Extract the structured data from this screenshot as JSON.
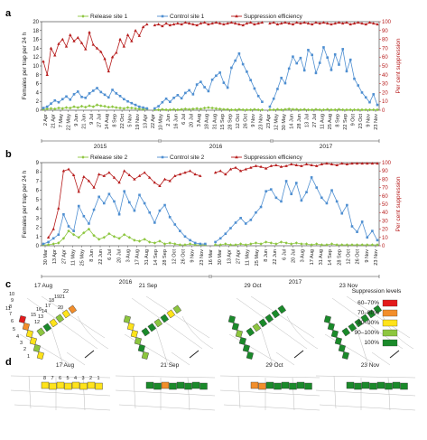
{
  "chart_data": [
    {
      "panel": "a",
      "type": "line",
      "legend": {
        "placement": "top",
        "entries": [
          "Release site 1",
          "Control site 1",
          "Suppression efficiency"
        ]
      },
      "ylabel": "Females per trap per 24 h",
      "y2label": "Per cent suppression",
      "ylim": [
        0,
        20
      ],
      "y2lim": [
        0,
        100
      ],
      "yticks": [
        "0",
        "2",
        "4",
        "6",
        "8",
        "10",
        "12",
        "14",
        "16",
        "18",
        "20"
      ],
      "y2ticks": [
        "0",
        "10",
        "20",
        "30",
        "40",
        "50",
        "60",
        "70",
        "80",
        "90",
        "100"
      ],
      "xticks": [
        "2 Apr",
        "21 Apr",
        "7 May",
        "22 May",
        "9 Jun",
        "21 Jun",
        "9 Jul",
        "27 Jul",
        "14 Aug",
        "8 Sep",
        "22 Oct",
        "5 Nov",
        "19 Nov",
        "13 Apr",
        "22 Apr",
        "10 May",
        "2 Jun",
        "16 Jun",
        "6 Jul",
        "20 Jul",
        "3 Aug",
        "18 Aug",
        "31 Aug",
        "15 Sep",
        "28 Sep",
        "12 Oct",
        "26 Oct",
        "9 Nov",
        "23 Nov",
        "23 Apr",
        "12 May",
        "30 May",
        "14 Jun",
        "28 Jun",
        "13 Jul",
        "27 Jul",
        "11 Aug",
        "25 Aug",
        "8 Sep",
        "22 Sep",
        "9 Oct",
        "23 Oct",
        "9 Nov",
        "23 Nov"
      ],
      "years": [
        "2015",
        "2016",
        "2017"
      ],
      "series": [
        {
          "name": "Release site 1",
          "color": "#8dc63f",
          "values": [
            0.2,
            0.3,
            0.4,
            0.3,
            0.5,
            0.4,
            0.6,
            0.5,
            0.8,
            0.6,
            0.9,
            0.7,
            1.0,
            0.8,
            1.2,
            1.0,
            0.9,
            0.7,
            0.8,
            0.6,
            0.5,
            0.4,
            0.6,
            0.5,
            0.4,
            0.3,
            0.2,
            0.3,
            null,
            0.1,
            0.1,
            0.2,
            0.1,
            0.1,
            0.2,
            0.1,
            0.2,
            0.3,
            0.2,
            0.3,
            0.4,
            0.3,
            0.5,
            0.6,
            0.5,
            0.4,
            0.3,
            0.2,
            0.2,
            0.1,
            0.1,
            0.2,
            0.1,
            0.1,
            0.1,
            0.2,
            0.1,
            0.1,
            null,
            0.1,
            0.1,
            0.2,
            0.1,
            0.2,
            0.3,
            0.2,
            0.2,
            0.1,
            0.2,
            0.1,
            0.1,
            0.2,
            0.1,
            0.1,
            0.2,
            0.1,
            0.1,
            0.2,
            0.1,
            0.1,
            0.1,
            0.1,
            0.1,
            0.1,
            0.1,
            0.1,
            0.1,
            0.1
          ]
        },
        {
          "name": "Control site 1",
          "color": "#4f8fd1",
          "values": [
            0.5,
            0.8,
            1.5,
            2.2,
            1.8,
            2.5,
            3.1,
            2.4,
            3.6,
            4.2,
            3.0,
            2.8,
            3.8,
            4.4,
            5.0,
            4.1,
            3.5,
            2.9,
            4.6,
            3.8,
            3.2,
            2.5,
            2.0,
            1.6,
            1.2,
            0.8,
            0.6,
            0.4,
            null,
            0.4,
            0.9,
            1.8,
            2.6,
            1.9,
            2.8,
            3.4,
            2.7,
            3.9,
            4.5,
            3.6,
            5.8,
            6.4,
            5.2,
            4.3,
            6.9,
            7.8,
            8.5,
            6.2,
            5.1,
            9.6,
            11.2,
            12.8,
            10.4,
            8.7,
            6.8,
            4.9,
            3.2,
            1.9,
            null,
            0.8,
            2.6,
            4.8,
            7.3,
            6.1,
            9.4,
            12.1,
            10.6,
            11.8,
            9.0,
            13.6,
            12.5,
            8.4,
            10.7,
            14.2,
            11.9,
            9.1,
            12.6,
            10.3,
            13.8,
            8.8,
            11.4,
            7.1,
            5.6,
            4.0,
            2.9,
            1.8,
            3.6,
            1.2
          ]
        },
        {
          "name": "Suppression efficiency",
          "color": "#b71c1c",
          "axis": "right",
          "values": [
            55,
            40,
            70,
            62,
            75,
            80,
            72,
            85,
            78,
            82,
            76,
            69,
            88,
            74,
            70,
            66,
            58,
            44,
            60,
            65,
            80,
            72,
            85,
            78,
            90,
            84,
            94,
            97,
            null,
            96,
            97,
            95,
            98,
            96,
            97,
            98,
            97,
            99,
            98,
            97,
            96,
            98,
            99,
            97,
            98,
            99,
            98,
            97,
            98,
            99,
            98,
            97,
            96,
            98,
            99,
            97,
            98,
            99,
            null,
            98,
            99,
            97,
            98,
            99,
            98,
            97,
            99,
            98,
            99,
            98,
            97,
            99,
            98,
            99,
            98,
            97,
            98,
            99,
            98,
            99,
            97,
            98,
            99,
            98,
            97,
            99,
            98,
            97
          ]
        }
      ]
    },
    {
      "panel": "b",
      "type": "line",
      "legend": {
        "placement": "top",
        "entries": [
          "Release site 2",
          "Control site 2",
          "Suppression efficiency"
        ]
      },
      "ylabel": "Females per trap per 24 h",
      "y2label": "Per cent suppression",
      "ylim": [
        0,
        9
      ],
      "y2lim": [
        0,
        100
      ],
      "yticks": [
        "0",
        "1",
        "2",
        "3",
        "4",
        "5",
        "6",
        "7",
        "8",
        "9"
      ],
      "y2ticks": [
        "0",
        "10",
        "20",
        "30",
        "40",
        "50",
        "60",
        "70",
        "80",
        "90",
        "100"
      ],
      "xticks": [
        "30 Mar",
        "13 Apr",
        "27 Apr",
        "11 May",
        "25 May",
        "8 Jun",
        "22 Jun",
        "6 Jul",
        "20 Jul",
        "3 Aug",
        "17 Aug",
        "31 Aug",
        "14 Sep",
        "28 Sep",
        "12 Oct",
        "26 Oct",
        "9 Nov",
        "23 Nov",
        "16 Mar",
        "30 Mar",
        "13 Apr",
        "27 Apr",
        "11 May",
        "25 May",
        "8 Jun",
        "22 Jun",
        "6 Jul",
        "20 Jul",
        "3 Aug",
        "17 Aug",
        "31 Aug",
        "14 Sep",
        "28 Sep",
        "12 Oct",
        "26 Oct",
        "9 Nov",
        "23 Nov"
      ],
      "years": [
        "2016",
        "2017"
      ],
      "series": [
        {
          "name": "Release site 2",
          "color": "#8dc63f",
          "values": [
            0.1,
            0.1,
            0.2,
            0.3,
            0.8,
            1.6,
            1.2,
            0.9,
            1.4,
            1.8,
            1.1,
            0.7,
            0.9,
            1.3,
            1.0,
            0.8,
            1.2,
            0.9,
            0.6,
            0.5,
            0.7,
            0.4,
            0.3,
            0.5,
            0.2,
            0.3,
            0.2,
            0.1,
            0.1,
            0.2,
            0.1,
            0.1,
            0.1,
            null,
            0.1,
            0.1,
            0.2,
            0.1,
            0.1,
            0.2,
            0.1,
            0.2,
            0.3,
            0.2,
            0.4,
            0.3,
            0.2,
            0.4,
            0.3,
            0.2,
            0.3,
            0.2,
            0.2,
            0.1,
            0.2,
            0.1,
            0.1,
            0.2,
            0.1,
            0.1,
            0.1,
            0.1,
            0.1,
            0.1,
            0.1,
            0.1,
            0.1
          ]
        },
        {
          "name": "Control site 2",
          "color": "#4f8fd1",
          "values": [
            0.2,
            0.4,
            0.8,
            1.2,
            3.4,
            2.1,
            1.6,
            4.3,
            3.2,
            2.4,
            3.9,
            5.3,
            4.6,
            5.6,
            4.8,
            3.4,
            5.9,
            4.7,
            3.8,
            5.5,
            4.6,
            3.6,
            2.5,
            3.8,
            4.4,
            3.1,
            2.3,
            1.6,
            1.0,
            0.6,
            0.3,
            0.2,
            0.2,
            null,
            0.4,
            0.8,
            1.3,
            1.9,
            2.5,
            3.0,
            2.4,
            2.8,
            3.6,
            4.2,
            5.9,
            6.1,
            5.2,
            4.8,
            7.0,
            5.6,
            6.8,
            4.9,
            5.8,
            7.4,
            6.3,
            5.2,
            4.6,
            6.0,
            4.8,
            3.5,
            4.4,
            2.1,
            1.5,
            2.6,
            0.9,
            1.6,
            0.6
          ]
        },
        {
          "name": "Suppression efficiency",
          "color": "#b71c1c",
          "axis": "right",
          "values": [
            null,
            10,
            20,
            45,
            90,
            92,
            85,
            65,
            83,
            78,
            70,
            86,
            84,
            88,
            82,
            76,
            90,
            85,
            80,
            84,
            88,
            82,
            76,
            72,
            80,
            78,
            84,
            86,
            88,
            90,
            86,
            84,
            null,
            null,
            88,
            90,
            86,
            92,
            94,
            90,
            92,
            94,
            96,
            95,
            93,
            96,
            97,
            95,
            96,
            98,
            97,
            96,
            98,
            97,
            96,
            98,
            99,
            98,
            97,
            99,
            98,
            99,
            99,
            99,
            99,
            99,
            99
          ]
        }
      ]
    },
    {
      "panel": "c",
      "type": "heatmap",
      "dates": [
        "17 Aug",
        "21 Sep",
        "29 Oct",
        "23 Nov"
      ],
      "legend_title": "Suppression levels",
      "levels": [
        {
          "label": "60–70%",
          "color": "#e31a1c"
        },
        {
          "label": "70–80%",
          "color": "#f28e2b"
        },
        {
          "label": "80–90%",
          "color": "#ffe31a"
        },
        {
          "label": "90–100%",
          "color": "#8dc63f"
        },
        {
          "label": "100%",
          "color": "#1a8a2a"
        }
      ],
      "zone_numbers": [
        "1",
        "2",
        "3",
        "4",
        "5",
        "6",
        "7",
        "8",
        "9",
        "10",
        "11",
        "12",
        "13",
        "14",
        "15",
        "16",
        "17",
        "18",
        "19",
        "20",
        "21",
        "22"
      ]
    },
    {
      "panel": "d",
      "type": "heatmap",
      "dates": [
        "17 Aug",
        "21 Sep",
        "29 Oct",
        "23 Nov"
      ],
      "zone_numbers": [
        "1",
        "2",
        "3",
        "4",
        "5",
        "6",
        "7",
        "8"
      ]
    }
  ],
  "panel_labels": [
    "a",
    "b",
    "c",
    "d"
  ]
}
